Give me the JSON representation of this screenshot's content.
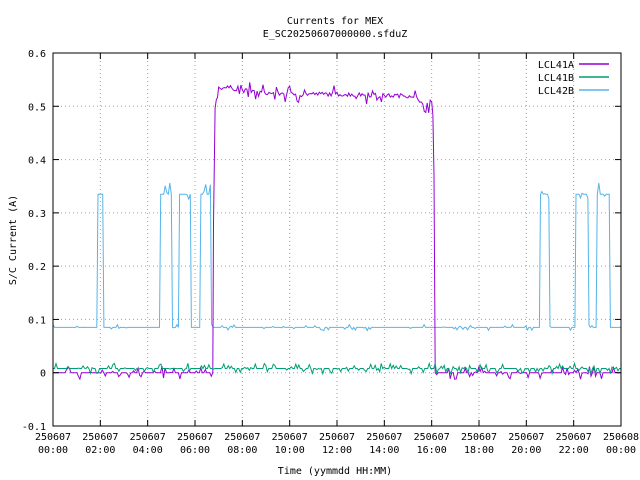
{
  "chart_data": {
    "type": "line",
    "title": "Currents for MEX",
    "subtitle": "E_SC20250607000000.sfduZ",
    "xlabel": "Time (yymmdd HH:MM)",
    "ylabel": "S/C Current (A)",
    "xlim_hours": [
      0,
      24
    ],
    "ylim": [
      -0.1,
      0.6
    ],
    "grid": true,
    "legend_position": "top-right",
    "y_ticks": [
      {
        "value": -0.1,
        "label": "-0.1"
      },
      {
        "value": 0,
        "label": "0"
      },
      {
        "value": 0.1,
        "label": "0.1"
      },
      {
        "value": 0.2,
        "label": "0.2"
      },
      {
        "value": 0.3,
        "label": "0.3"
      },
      {
        "value": 0.4,
        "label": "0.4"
      },
      {
        "value": 0.5,
        "label": "0.5"
      },
      {
        "value": 0.6,
        "label": "0.6"
      }
    ],
    "x_ticks": [
      {
        "value": 0,
        "date": "250607",
        "time": "00:00"
      },
      {
        "value": 2,
        "date": "250607",
        "time": "02:00"
      },
      {
        "value": 4,
        "date": "250607",
        "time": "04:00"
      },
      {
        "value": 6,
        "date": "250607",
        "time": "06:00"
      },
      {
        "value": 8,
        "date": "250607",
        "time": "08:00"
      },
      {
        "value": 10,
        "date": "250607",
        "time": "10:00"
      },
      {
        "value": 12,
        "date": "250607",
        "time": "12:00"
      },
      {
        "value": 14,
        "date": "250607",
        "time": "14:00"
      },
      {
        "value": 16,
        "date": "250607",
        "time": "16:00"
      },
      {
        "value": 18,
        "date": "250607",
        "time": "18:00"
      },
      {
        "value": 20,
        "date": "250607",
        "time": "20:00"
      },
      {
        "value": 22,
        "date": "250607",
        "time": "22:00"
      },
      {
        "value": 24,
        "date": "250608",
        "time": "00:00"
      }
    ],
    "series": [
      {
        "name": "LCL41A",
        "color": "#9400d3",
        "points": [
          [
            0,
            0.0
          ],
          [
            6.75,
            0.0
          ],
          [
            6.78,
            0.28
          ],
          [
            6.85,
            0.5
          ],
          [
            6.95,
            0.52
          ],
          [
            7.0,
            0.535
          ],
          [
            7.5,
            0.535
          ],
          [
            8.0,
            0.53
          ],
          [
            8.5,
            0.527
          ],
          [
            9.0,
            0.525
          ],
          [
            10.0,
            0.523
          ],
          [
            11.0,
            0.523
          ],
          [
            12.0,
            0.523
          ],
          [
            13.0,
            0.522
          ],
          [
            14.0,
            0.52
          ],
          [
            15.0,
            0.52
          ],
          [
            15.3,
            0.52
          ],
          [
            15.5,
            0.505
          ],
          [
            16.0,
            0.505
          ],
          [
            16.05,
            0.48
          ],
          [
            16.1,
            0.37
          ],
          [
            16.15,
            0.0
          ],
          [
            24,
            0.0
          ]
        ]
      },
      {
        "name": "LCL41B",
        "color": "#009e73",
        "points": [
          [
            0,
            0.008
          ],
          [
            24,
            0.008
          ]
        ]
      },
      {
        "name": "LCL42B",
        "color": "#56b4e9",
        "points": [
          [
            0,
            0.085
          ],
          [
            1.85,
            0.085
          ],
          [
            1.9,
            0.335
          ],
          [
            2.1,
            0.335
          ],
          [
            2.15,
            0.085
          ],
          [
            4.5,
            0.085
          ],
          [
            4.55,
            0.335
          ],
          [
            5.0,
            0.335
          ],
          [
            5.05,
            0.085
          ],
          [
            5.3,
            0.085
          ],
          [
            5.35,
            0.335
          ],
          [
            5.8,
            0.335
          ],
          [
            5.85,
            0.085
          ],
          [
            6.2,
            0.085
          ],
          [
            6.25,
            0.335
          ],
          [
            6.65,
            0.335
          ],
          [
            6.7,
            0.085
          ],
          [
            20.55,
            0.085
          ],
          [
            20.6,
            0.335
          ],
          [
            20.95,
            0.335
          ],
          [
            21.0,
            0.085
          ],
          [
            22.05,
            0.085
          ],
          [
            22.1,
            0.335
          ],
          [
            22.6,
            0.335
          ],
          [
            22.65,
            0.085
          ],
          [
            22.95,
            0.085
          ],
          [
            23.0,
            0.335
          ],
          [
            23.5,
            0.335
          ],
          [
            23.55,
            0.085
          ],
          [
            24,
            0.085
          ]
        ]
      }
    ]
  }
}
